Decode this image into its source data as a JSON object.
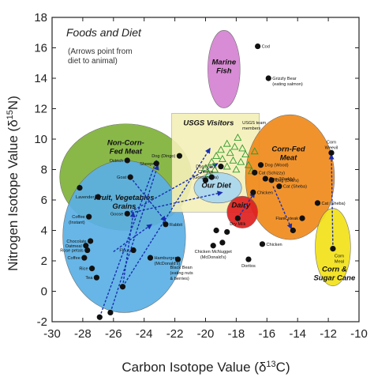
{
  "chart_data": {
    "type": "scatter",
    "title": "Foods and Diet",
    "subtitle_lines": [
      "(Arrows point from",
      "diet to animal)"
    ],
    "xlabel_text": "Carbon Isotope Value (δ",
    "xlabel_sup": "13",
    "xlabel_end": "C)",
    "ylabel_text": "Nitrogen Isotope Value (δ",
    "ylabel_sup": "15",
    "ylabel_end": "N)",
    "xlim": [
      -30,
      -10
    ],
    "ylim": [
      -2,
      18
    ],
    "xticks": [
      -30,
      -28,
      -26,
      -24,
      -22,
      -20,
      -18,
      -16,
      -14,
      -12,
      -10
    ],
    "yticks": [
      -2,
      0,
      2,
      4,
      6,
      8,
      10,
      12,
      14,
      16,
      18
    ],
    "regions": [
      {
        "label_lines": [
          "Non-Corn-",
          "Fed Meat"
        ],
        "shape": "ellipse",
        "cx": -25.2,
        "cy": 7.5,
        "rx": 4.3,
        "ry": 3.5,
        "color": "#7fb33a",
        "label_at": [
          -25.2,
          9.6
        ]
      },
      {
        "label_lines": [
          "Fruit, Vegetables",
          "Grains"
        ],
        "shape": "ellipse",
        "cx": -25.3,
        "cy": 3.6,
        "rx": 4.0,
        "ry": 5.0,
        "color": "#5bb0e6",
        "label_at": [
          -25.3,
          6.0
        ]
      },
      {
        "label_lines": [
          "Marine",
          "Fish"
        ],
        "shape": "ellipse",
        "cx": -18.8,
        "cy": 14.6,
        "rx": 1.05,
        "ry": 2.55,
        "color": "#d583d2",
        "label_at": [
          -18.8,
          14.9
        ]
      },
      {
        "label_lines": [
          "USGS Visitors"
        ],
        "shape": "rect",
        "x0": -22.2,
        "x1": -16.5,
        "y0": 5.2,
        "y1": 11.7,
        "color": "#f5f0b8",
        "label_at": [
          -19.8,
          10.9
        ]
      },
      {
        "label_lines": [
          "Corn-Fed",
          "Meat"
        ],
        "shape": "ellipse",
        "cx": -14.5,
        "cy": 7.5,
        "rx": 2.9,
        "ry": 4.1,
        "color": "#f08a1c",
        "label_at": [
          -14.6,
          9.2
        ]
      },
      {
        "label_lines": [
          "Our Diet"
        ],
        "shape": "ellipse",
        "cx": -19.2,
        "cy": 6.8,
        "rx": 1.55,
        "ry": 1.0,
        "color": "#a8d6f0",
        "label_at": [
          -19.3,
          6.8
        ]
      },
      {
        "label_lines": [
          "Dairy"
        ],
        "shape": "ellipse",
        "cx": -17.6,
        "cy": 5.2,
        "rx": 1.0,
        "ry": 1.05,
        "color": "#e02020",
        "label_at": [
          -17.7,
          5.5
        ]
      },
      {
        "label_lines": [
          "Corn &",
          "Sugar Cane"
        ],
        "shape": "ellipse",
        "cx": -11.7,
        "cy": 2.9,
        "rx": 1.15,
        "ry": 2.55,
        "color": "#f2e21a",
        "label_at": [
          -11.6,
          1.3
        ]
      }
    ],
    "points": [
      {
        "x": -16.6,
        "y": 16.1,
        "label": "Cod"
      },
      {
        "x": -15.9,
        "y": 14.0,
        "label": "Grizzly Bear\n(eating salmon)"
      },
      {
        "x": -25.1,
        "y": 8.6,
        "label": "Ostrich"
      },
      {
        "x": -24.9,
        "y": 7.5,
        "label": "Goat"
      },
      {
        "x": -23.2,
        "y": 8.4,
        "label": "Sheep"
      },
      {
        "x": -21.7,
        "y": 8.9,
        "label": "Dog (Dingo)"
      },
      {
        "x": -19.0,
        "y": 8.2,
        "label": "Dog (Wo..."
      },
      {
        "x": -16.4,
        "y": 8.3,
        "label": "Dog (Wood)"
      },
      {
        "x": -16.8,
        "y": 7.8,
        "label": "Cat (Schizzy)"
      },
      {
        "x": -16.1,
        "y": 7.4,
        "label": "Dog (Maddy)"
      },
      {
        "x": -15.7,
        "y": 7.3,
        "label": "Dog (Deb's)"
      },
      {
        "x": -15.2,
        "y": 6.9,
        "label": "Cat (Sheba)"
      },
      {
        "x": -12.7,
        "y": 5.8,
        "label": "Cat (Sheba)"
      },
      {
        "x": -11.8,
        "y": 9.1,
        "label": "Corn\nWeevil"
      },
      {
        "x": -19.6,
        "y": 7.5,
        "label": ""
      },
      {
        "x": -16.9,
        "y": 6.5,
        "label": "Chicken"
      },
      {
        "x": -27.0,
        "y": 6.2,
        "label": "Lavender"
      },
      {
        "x": -28.2,
        "y": 6.8,
        "label": ""
      },
      {
        "x": -27.6,
        "y": 4.9,
        "label": "Coffee\n(Instant)"
      },
      {
        "x": -25.1,
        "y": 5.1,
        "label": "Goose"
      },
      {
        "x": -22.6,
        "y": 4.4,
        "label": "Rabbit"
      },
      {
        "x": -17.9,
        "y": 4.8,
        "label": "Dry Milk"
      },
      {
        "x": -13.7,
        "y": 4.8,
        "label": "Flank steak"
      },
      {
        "x": -14.3,
        "y": 4.0,
        "label": ""
      },
      {
        "x": -11.7,
        "y": 2.8,
        "label": "Corn\nMeal"
      },
      {
        "x": -27.5,
        "y": 3.3,
        "label": "Chocolate"
      },
      {
        "x": -27.8,
        "y": 3.0,
        "label": "Oatmeal"
      },
      {
        "x": -27.7,
        "y": 2.7,
        "label": "Rose petals"
      },
      {
        "x": -27.9,
        "y": 2.2,
        "label": "Coffee"
      },
      {
        "x": -27.4,
        "y": 1.5,
        "label": "Rice"
      },
      {
        "x": -27.1,
        "y": 0.9,
        "label": "Tea"
      },
      {
        "x": -24.7,
        "y": 2.7,
        "label": "Flour"
      },
      {
        "x": -23.6,
        "y": 2.2,
        "label": "Hamburger\n(McDonald's)"
      },
      {
        "x": -21.8,
        "y": 2.1,
        "label": "Black Bean\n(eating nuts\n& berries)"
      },
      {
        "x": -19.3,
        "y": 4.0,
        "label": ""
      },
      {
        "x": -18.6,
        "y": 3.9,
        "label": ""
      },
      {
        "x": -18.9,
        "y": 3.2,
        "label": ""
      },
      {
        "x": -19.5,
        "y": 3.0,
        "label": "Chicken McNugget\n(McDonald's)"
      },
      {
        "x": -17.2,
        "y": 2.1,
        "label": "Doritos"
      },
      {
        "x": -16.3,
        "y": 3.1,
        "label": "Chicken"
      },
      {
        "x": -25.4,
        "y": 0.3,
        "label": ""
      },
      {
        "x": -26.9,
        "y": -1.7,
        "label": ""
      },
      {
        "x": -26.2,
        "y": -1.4,
        "label": ""
      },
      {
        "x": -20.0,
        "y": 7.3,
        "label": "Cheese\n(Gorgonzola)"
      }
    ],
    "visitors_label": "USGS team\nmembers",
    "visitors": [
      {
        "x": -18.6,
        "y": 9.7
      },
      {
        "x": -18.1,
        "y": 9.5
      },
      {
        "x": -17.6,
        "y": 9.4
      },
      {
        "x": -17.4,
        "y": 9.0
      },
      {
        "x": -18.4,
        "y": 9.1
      },
      {
        "x": -19.0,
        "y": 9.3
      },
      {
        "x": -19.3,
        "y": 8.9
      },
      {
        "x": -18.9,
        "y": 8.7
      },
      {
        "x": -18.2,
        "y": 8.6
      },
      {
        "x": -17.7,
        "y": 8.5
      },
      {
        "x": -17.2,
        "y": 8.3
      },
      {
        "x": -18.6,
        "y": 8.2
      },
      {
        "x": -19.6,
        "y": 8.5
      },
      {
        "x": -20.0,
        "y": 8.1
      },
      {
        "x": -19.4,
        "y": 8.0
      },
      {
        "x": -18.0,
        "y": 8.0
      },
      {
        "x": -17.0,
        "y": 7.9
      },
      {
        "x": -16.8,
        "y": 9.2
      },
      {
        "x": -17.9,
        "y": 10.1
      },
      {
        "x": -19.8,
        "y": 7.7
      }
    ],
    "arrows": [
      {
        "from": [
          -26.9,
          -1.7
        ],
        "to": [
          -23.2,
          8.6
        ]
      },
      {
        "from": [
          -26.2,
          -1.4
        ],
        "to": [
          -23.1,
          8.3
        ]
      },
      {
        "from": [
          -25.4,
          0.3
        ],
        "to": [
          -19.7,
          9.4
        ]
      },
      {
        "from": [
          -25.4,
          0.3
        ],
        "to": [
          -24.7,
          5.2
        ]
      },
      {
        "from": [
          -25.1,
          5.1
        ],
        "to": [
          -19.2,
          8.4
        ]
      },
      {
        "from": [
          -25.1,
          5.1
        ],
        "to": [
          -18.9,
          6.5
        ]
      },
      {
        "from": [
          -24.9,
          7.5
        ],
        "to": [
          -22.6,
          4.6
        ]
      },
      {
        "from": [
          -26.0,
          2.6
        ],
        "to": [
          -23.5,
          4.4
        ]
      },
      {
        "from": [
          -15.6,
          6.9
        ],
        "to": [
          -14.4,
          4.1
        ]
      },
      {
        "from": [
          -11.7,
          2.8
        ],
        "to": [
          -11.8,
          9.0
        ]
      },
      {
        "from": [
          -17.9,
          4.8
        ],
        "to": [
          -16.8,
          6.5
        ]
      }
    ]
  }
}
